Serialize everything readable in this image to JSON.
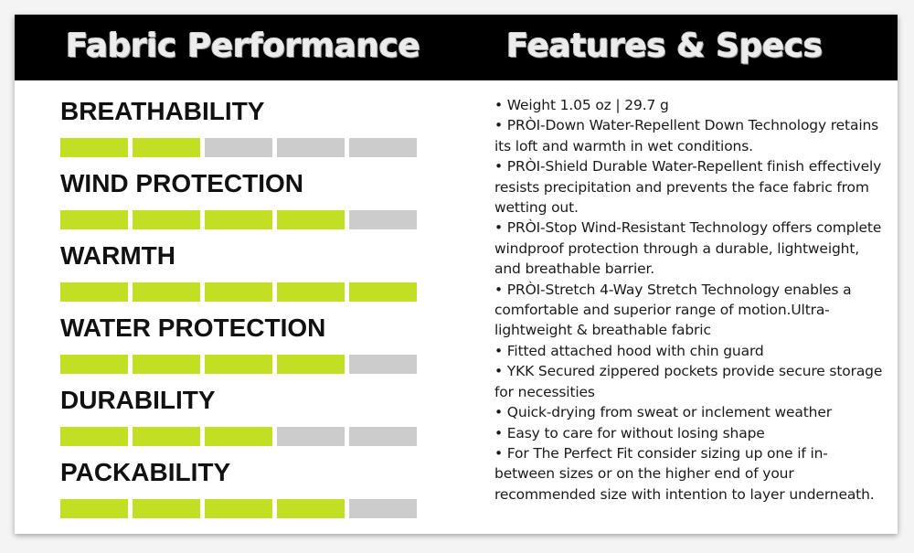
{
  "header": {
    "left_title": "Fabric Performance",
    "right_title": "Features & Specs"
  },
  "colors": {
    "header_bg": "#000000",
    "bar_on": "#c2df24",
    "bar_off": "#cccccc"
  },
  "metrics": [
    {
      "label": "BREATHABILITY",
      "rating": 2,
      "max": 5
    },
    {
      "label": "WIND PROTECTION",
      "rating": 4,
      "max": 5
    },
    {
      "label": "WARMTH",
      "rating": 5,
      "max": 5
    },
    {
      "label": "WATER PROTECTION",
      "rating": 4,
      "max": 5
    },
    {
      "label": "DURABILITY",
      "rating": 3,
      "max": 5
    },
    {
      "label": "PACKABILITY",
      "rating": 4,
      "max": 5
    }
  ],
  "specs": [
    "• Weight 1.05 oz | 29.7 g",
    "• PRÒI-Down Water-Repellent Down Technology retains its loft and warmth in wet conditions.",
    "• PRÒI-Shield Durable Water-Repellent finish effectively resists precipitation and prevents the face fabric from wetting out.",
    "• PRÒI-Stop Wind-Resistant Technology offers complete windproof protection through a durable, lightweight, and breathable barrier.",
    "• PRÒI-Stretch 4-Way Stretch Technology enables a comfortable and superior range of motion.Ultra-lightweight & breathable fabric",
    "• Fitted attached hood with chin guard",
    "• YKK Secured zippered pockets provide secure storage for necessities",
    "• Quick-drying from sweat or inclement weather",
    "• Easy to care for without losing shape",
    "• For The Perfect Fit consider sizing up one if in-between sizes or on the higher end of your recommended size with intention to layer underneath."
  ]
}
